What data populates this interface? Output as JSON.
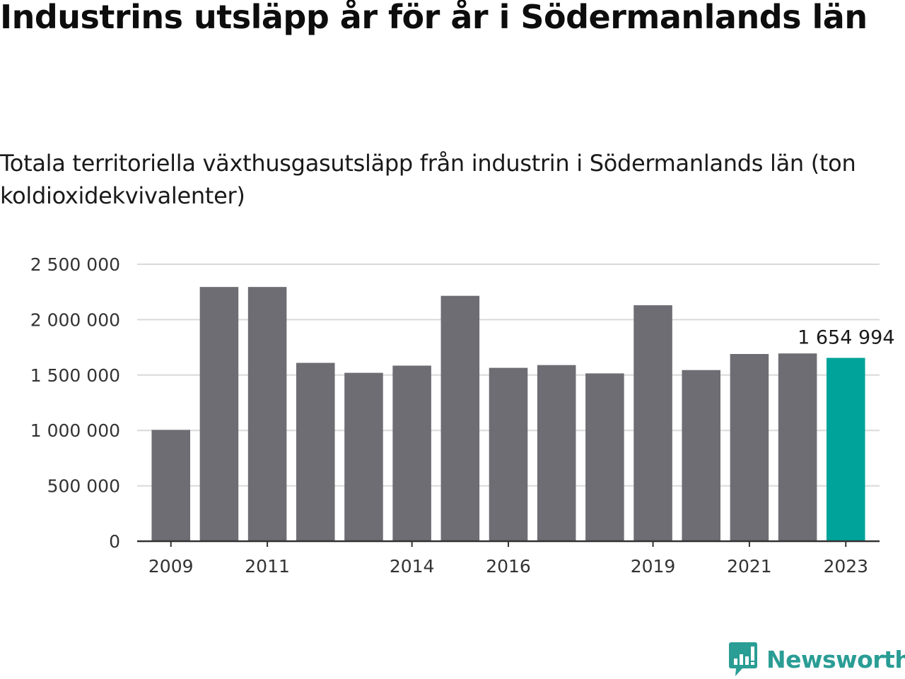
{
  "title": "Industrins utsläpp år för år i Södermanlands län",
  "subtitle": "Totala territoriella växthusgasutsläpp från industrin i Södermanlands län (ton koldioxidekvivalenter)",
  "brand": {
    "name": "Newsworthy",
    "color": "#2a9d95",
    "icon": "bar-chart-speech-bubble-icon"
  },
  "colors": {
    "bar": "#6e6d74",
    "highlight": "#00a39a",
    "grid": "#d9d9d9",
    "axis": "#333333"
  },
  "chart_data": {
    "type": "bar",
    "categories": [
      "2009",
      "2010",
      "2011",
      "2012",
      "2013",
      "2014",
      "2015",
      "2016",
      "2017",
      "2018",
      "2019",
      "2020",
      "2021",
      "2022",
      "2023"
    ],
    "values": [
      1005000,
      2295000,
      2295000,
      1610000,
      1520000,
      1585000,
      2215000,
      1565000,
      1590000,
      1515000,
      2130000,
      1545000,
      1690000,
      1695000,
      1654994
    ],
    "highlight_index": 14,
    "x_tick_labels": [
      "2009",
      "2011",
      "2014",
      "2016",
      "2019",
      "2021",
      "2023"
    ],
    "y_ticks": [
      0,
      500000,
      1000000,
      1500000,
      2000000,
      2500000
    ],
    "y_tick_labels": [
      "0",
      "500 000",
      "1 000 000",
      "1 500 000",
      "2 000 000",
      "2 500 000"
    ],
    "ylim": [
      0,
      2500000
    ],
    "data_label": {
      "index": 14,
      "text": "1 654 994"
    },
    "grid": true,
    "xlabel": "",
    "ylabel": ""
  }
}
